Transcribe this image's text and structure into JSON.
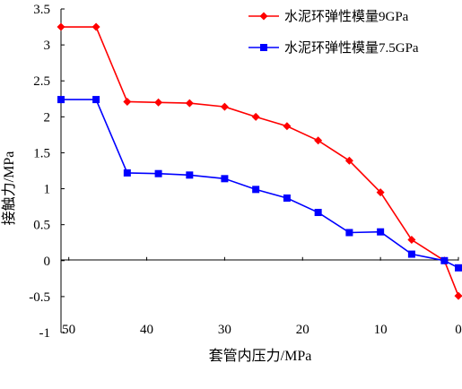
{
  "chart_data": {
    "type": "line",
    "xlabel": "套管内压力/MPa",
    "ylabel": "接触力/MPa",
    "xlim": [
      51,
      0
    ],
    "ylim": [
      -1,
      3.5
    ],
    "x_reversed": true,
    "x_ticks": [
      "50",
      "40",
      "30",
      "20",
      "10",
      "0"
    ],
    "y_ticks": [
      "3.5",
      "3",
      "2.5",
      "2",
      "1.5",
      "1",
      "0.5",
      "0",
      "-0.5",
      "-1"
    ],
    "grid": false,
    "legend_position": "top-right",
    "series": [
      {
        "name": "水泥环弹性模量9GPa",
        "color": "#ff0000",
        "marker": "diamond",
        "x": [
          51,
          46.5,
          42.5,
          38.5,
          34.5,
          30,
          26,
          22,
          18,
          14,
          10,
          6,
          1.8,
          0
        ],
        "y": [
          3.25,
          3.25,
          2.21,
          2.2,
          2.19,
          2.14,
          2.0,
          1.87,
          1.67,
          1.39,
          0.95,
          0.29,
          0.0,
          -0.49
        ]
      },
      {
        "name": "水泥环弹性模量7.5GPa",
        "color": "#0000ff",
        "marker": "square",
        "x": [
          51,
          46.5,
          42.5,
          38.5,
          34.5,
          30,
          26,
          22,
          18,
          14,
          10,
          6,
          1.8,
          0
        ],
        "y": [
          2.24,
          2.24,
          1.22,
          1.21,
          1.19,
          1.14,
          0.99,
          0.87,
          0.67,
          0.39,
          0.4,
          0.09,
          0.0,
          -0.1
        ]
      }
    ]
  }
}
